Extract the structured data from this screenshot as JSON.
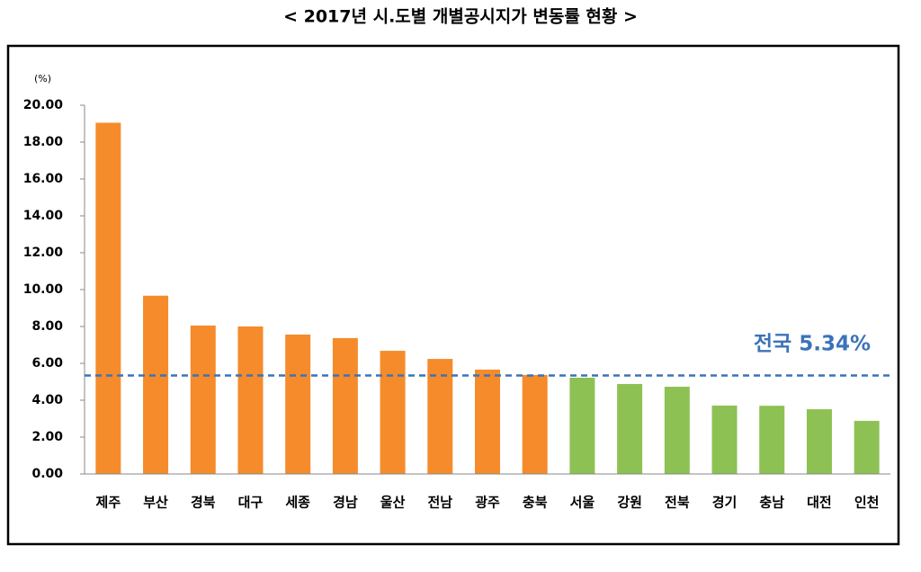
{
  "chart_data": {
    "type": "bar",
    "title": "< 2017년 시.도별 개별공시지가 변동률 현황 >",
    "y_label": "(%)",
    "categories": [
      "제주",
      "부산",
      "경북",
      "대구",
      "세종",
      "경남",
      "울산",
      "전남",
      "광주",
      "충북",
      "서울",
      "강원",
      "전북",
      "경기",
      "충남",
      "대전",
      "인천"
    ],
    "values": [
      19.05,
      9.67,
      8.05,
      8.0,
      7.56,
      7.37,
      6.68,
      6.24,
      5.66,
      5.37,
      5.22,
      4.88,
      4.73,
      3.71,
      3.7,
      3.51,
      2.88
    ],
    "colors": [
      "#f58b2b",
      "#f58b2b",
      "#f58b2b",
      "#f58b2b",
      "#f58b2b",
      "#f58b2b",
      "#f58b2b",
      "#f58b2b",
      "#f58b2b",
      "#f58b2b",
      "#8dc153",
      "#8dc153",
      "#8dc153",
      "#8dc153",
      "#8dc153",
      "#8dc153",
      "#8dc153"
    ],
    "ylim": [
      0,
      20
    ],
    "yticks": [
      {
        "value": 0,
        "label": "0.00"
      },
      {
        "value": 2,
        "label": "2.00"
      },
      {
        "value": 4,
        "label": "4.00"
      },
      {
        "value": 6,
        "label": "6.00"
      },
      {
        "value": 8,
        "label": "8.00"
      },
      {
        "value": 10,
        "label": "10.00"
      },
      {
        "value": 12,
        "label": "12.00"
      },
      {
        "value": 14,
        "label": "14.00"
      },
      {
        "value": 16,
        "label": "16.00"
      },
      {
        "value": 18,
        "label": "18.00"
      },
      {
        "value": 20,
        "label": "20.00"
      }
    ],
    "reference_line": {
      "value": 5.34,
      "label": "전국 5.34%",
      "color": "#3b73b9"
    },
    "grid": false
  }
}
